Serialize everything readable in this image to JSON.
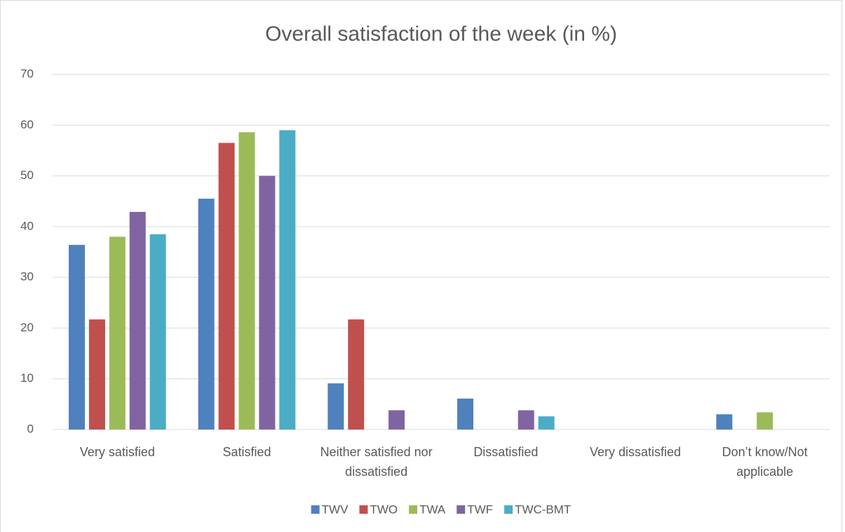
{
  "chart_data": {
    "type": "bar",
    "title": "Overall satisfaction of the week (in %)",
    "categories": [
      "Very satisfied",
      "Satisfied",
      "Neither satisfied nor dissatisfied",
      "Dissatisfied",
      "Very dissatisfied",
      "Don’t know/Not applicable"
    ],
    "series": [
      {
        "name": "TWV",
        "color": "#4f81bd",
        "values": [
          36.4,
          45.5,
          9.1,
          6.1,
          0,
          3
        ]
      },
      {
        "name": "TWO",
        "color": "#c0504d",
        "values": [
          21.7,
          56.5,
          21.7,
          0,
          0,
          0
        ]
      },
      {
        "name": "TWA",
        "color": "#9bbb59",
        "values": [
          38,
          58.6,
          0,
          0,
          0,
          3.4
        ]
      },
      {
        "name": "TWF",
        "color": "#8064a2",
        "values": [
          42.9,
          50,
          3.8,
          3.8,
          0,
          0
        ]
      },
      {
        "name": "TWC-BMT",
        "color": "#4bacc6",
        "values": [
          38.5,
          59,
          0,
          2.6,
          0,
          0
        ]
      }
    ],
    "ylim": [
      0,
      70
    ],
    "yticks": [
      0,
      10,
      20,
      30,
      40,
      50,
      60,
      70
    ],
    "grid": true,
    "legend": "bottom"
  }
}
